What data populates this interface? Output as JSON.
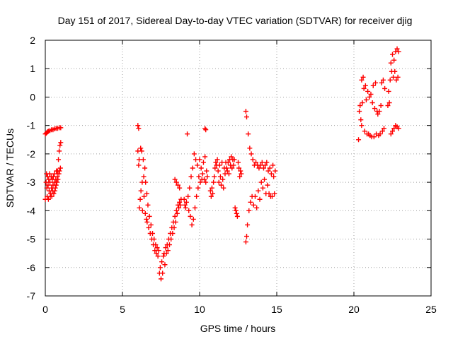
{
  "chart_data": {
    "type": "scatter",
    "title": "Day 151 of 2017, Sidereal Day-to-day VTEC variation (SDTVAR) for receiver djig",
    "xlabel": "GPS time / hours",
    "ylabel": "SDTVAR / TECUs",
    "xlim": [
      0,
      25
    ],
    "ylim": [
      -7,
      2
    ],
    "xticks": [
      0,
      5,
      10,
      15,
      20,
      25
    ],
    "yticks": [
      -7,
      -6,
      -5,
      -4,
      -3,
      -2,
      -1,
      0,
      1,
      2
    ],
    "grid": true,
    "marker": "plus",
    "series": [
      {
        "name": "SDTVAR",
        "color": "#ff0000",
        "points": [
          [
            0.0,
            -1.3
          ],
          [
            0.05,
            -1.28
          ],
          [
            0.1,
            -1.25
          ],
          [
            0.15,
            -1.22
          ],
          [
            0.2,
            -1.2
          ],
          [
            0.3,
            -1.18
          ],
          [
            0.4,
            -1.15
          ],
          [
            0.5,
            -1.15
          ],
          [
            0.6,
            -1.12
          ],
          [
            0.7,
            -1.1
          ],
          [
            0.8,
            -1.1
          ],
          [
            0.9,
            -1.08
          ],
          [
            1.0,
            -1.08
          ],
          [
            0.0,
            -3.6
          ],
          [
            0.05,
            -3.0
          ],
          [
            0.08,
            -2.7
          ],
          [
            0.1,
            -3.2
          ],
          [
            0.12,
            -3.5
          ],
          [
            0.15,
            -2.8
          ],
          [
            0.18,
            -3.1
          ],
          [
            0.2,
            -3.6
          ],
          [
            0.22,
            -2.9
          ],
          [
            0.25,
            -3.3
          ],
          [
            0.28,
            -2.7
          ],
          [
            0.3,
            -3.0
          ],
          [
            0.32,
            -3.5
          ],
          [
            0.35,
            -3.4
          ],
          [
            0.38,
            -2.8
          ],
          [
            0.4,
            -3.2
          ],
          [
            0.42,
            -3.5
          ],
          [
            0.45,
            -2.9
          ],
          [
            0.48,
            -3.3
          ],
          [
            0.5,
            -3.1
          ],
          [
            0.52,
            -2.8
          ],
          [
            0.55,
            -3.4
          ],
          [
            0.58,
            -3.0
          ],
          [
            0.6,
            -2.7
          ],
          [
            0.62,
            -3.3
          ],
          [
            0.65,
            -3.2
          ],
          [
            0.68,
            -2.9
          ],
          [
            0.7,
            -3.1
          ],
          [
            0.72,
            -2.6
          ],
          [
            0.75,
            -3.0
          ],
          [
            0.78,
            -2.8
          ],
          [
            0.8,
            -2.6
          ],
          [
            0.82,
            -2.9
          ],
          [
            0.85,
            -2.2
          ],
          [
            0.88,
            -2.7
          ],
          [
            0.9,
            -1.9
          ],
          [
            0.92,
            -2.6
          ],
          [
            0.95,
            -1.7
          ],
          [
            0.98,
            -2.5
          ],
          [
            1.0,
            -1.6
          ],
          [
            6.0,
            -1.0
          ],
          [
            6.05,
            -1.1
          ],
          [
            6.0,
            -1.9
          ],
          [
            6.05,
            -2.4
          ],
          [
            6.08,
            -2.2
          ],
          [
            6.1,
            -3.9
          ],
          [
            6.15,
            -3.6
          ],
          [
            6.18,
            -1.8
          ],
          [
            6.2,
            -3.3
          ],
          [
            6.25,
            -1.9
          ],
          [
            6.28,
            -3.0
          ],
          [
            6.3,
            -4.0
          ],
          [
            6.35,
            -2.2
          ],
          [
            6.38,
            -2.8
          ],
          [
            6.4,
            -3.5
          ],
          [
            6.45,
            -2.5
          ],
          [
            6.48,
            -4.1
          ],
          [
            6.5,
            -3.0
          ],
          [
            6.55,
            -4.3
          ],
          [
            6.58,
            -3.4
          ],
          [
            6.6,
            -4.4
          ],
          [
            6.65,
            -3.8
          ],
          [
            6.7,
            -4.6
          ],
          [
            6.75,
            -4.2
          ],
          [
            6.8,
            -4.8
          ],
          [
            6.85,
            -4.5
          ],
          [
            6.9,
            -5.0
          ],
          [
            6.95,
            -4.8
          ],
          [
            7.0,
            -5.2
          ],
          [
            7.05,
            -5.0
          ],
          [
            7.1,
            -5.4
          ],
          [
            7.15,
            -5.2
          ],
          [
            7.2,
            -5.5
          ],
          [
            7.25,
            -5.3
          ],
          [
            7.3,
            -5.6
          ],
          [
            7.35,
            -5.4
          ],
          [
            7.4,
            -6.2
          ],
          [
            7.45,
            -6.0
          ],
          [
            7.5,
            -6.4
          ],
          [
            7.55,
            -5.8
          ],
          [
            7.6,
            -6.2
          ],
          [
            7.65,
            -5.6
          ],
          [
            7.7,
            -5.5
          ],
          [
            7.75,
            -5.9
          ],
          [
            7.8,
            -5.3
          ],
          [
            7.85,
            -5.5
          ],
          [
            7.9,
            -5.2
          ],
          [
            7.95,
            -5.4
          ],
          [
            8.0,
            -5.0
          ],
          [
            8.05,
            -5.2
          ],
          [
            8.1,
            -4.8
          ],
          [
            8.15,
            -5.0
          ],
          [
            8.2,
            -4.6
          ],
          [
            8.25,
            -4.8
          ],
          [
            8.3,
            -4.4
          ],
          [
            8.35,
            -4.6
          ],
          [
            8.4,
            -4.2
          ],
          [
            8.45,
            -4.4
          ],
          [
            8.5,
            -4.0
          ],
          [
            8.55,
            -4.1
          ],
          [
            8.6,
            -3.8
          ],
          [
            8.65,
            -3.9
          ],
          [
            8.7,
            -3.7
          ],
          [
            8.75,
            -3.8
          ],
          [
            8.8,
            -3.6
          ],
          [
            8.4,
            -2.9
          ],
          [
            8.5,
            -3.0
          ],
          [
            8.6,
            -3.1
          ],
          [
            8.7,
            -3.2
          ],
          [
            9.0,
            -3.6
          ],
          [
            9.05,
            -3.8
          ],
          [
            9.1,
            -3.9
          ],
          [
            9.15,
            -3.7
          ],
          [
            9.2,
            -1.3
          ],
          [
            9.25,
            -3.5
          ],
          [
            9.3,
            -4.0
          ],
          [
            9.35,
            -3.2
          ],
          [
            9.4,
            -4.2
          ],
          [
            9.45,
            -2.8
          ],
          [
            9.5,
            -4.5
          ],
          [
            9.55,
            -2.5
          ],
          [
            9.6,
            -4.3
          ],
          [
            9.65,
            -2.0
          ],
          [
            9.7,
            -3.9
          ],
          [
            9.75,
            -2.2
          ],
          [
            9.8,
            -3.5
          ],
          [
            9.85,
            -2.4
          ],
          [
            9.9,
            -3.2
          ],
          [
            9.95,
            -2.8
          ],
          [
            10.0,
            -2.2
          ],
          [
            10.05,
            -3.0
          ],
          [
            10.1,
            -2.5
          ],
          [
            10.15,
            -2.9
          ],
          [
            10.2,
            -2.7
          ],
          [
            10.25,
            -2.3
          ],
          [
            10.3,
            -2.9
          ],
          [
            10.35,
            -2.1
          ],
          [
            10.4,
            -3.0
          ],
          [
            10.45,
            -2.6
          ],
          [
            10.5,
            -2.8
          ],
          [
            10.35,
            -1.1
          ],
          [
            10.4,
            -1.15
          ],
          [
            10.7,
            -3.3
          ],
          [
            10.75,
            -3.5
          ],
          [
            10.8,
            -3.2
          ],
          [
            10.85,
            -3.4
          ],
          [
            10.9,
            -3.0
          ],
          [
            10.95,
            -2.8
          ],
          [
            11.0,
            -2.5
          ],
          [
            11.05,
            -2.3
          ],
          [
            11.1,
            -2.4
          ],
          [
            11.15,
            -2.2
          ],
          [
            11.2,
            -2.6
          ],
          [
            11.25,
            -3.0
          ],
          [
            11.3,
            -2.4
          ],
          [
            11.35,
            -2.8
          ],
          [
            11.4,
            -3.1
          ],
          [
            11.45,
            -2.3
          ],
          [
            11.5,
            -2.9
          ],
          [
            11.55,
            -3.2
          ],
          [
            11.6,
            -2.5
          ],
          [
            11.65,
            -2.7
          ],
          [
            11.7,
            -2.3
          ],
          [
            11.75,
            -2.5
          ],
          [
            11.8,
            -2.6
          ],
          [
            11.85,
            -2.3
          ],
          [
            11.9,
            -2.7
          ],
          [
            11.95,
            -2.2
          ],
          [
            12.0,
            -2.4
          ],
          [
            12.05,
            -2.1
          ],
          [
            12.1,
            -2.5
          ],
          [
            12.15,
            -2.2
          ],
          [
            12.2,
            -2.4
          ],
          [
            12.25,
            -2.2
          ],
          [
            12.3,
            -3.9
          ],
          [
            12.35,
            -4.0
          ],
          [
            12.4,
            -4.1
          ],
          [
            12.45,
            -4.2
          ],
          [
            12.5,
            -2.3
          ],
          [
            12.55,
            -2.5
          ],
          [
            12.6,
            -2.8
          ],
          [
            12.65,
            -2.6
          ],
          [
            12.7,
            -2.7
          ],
          [
            13.0,
            -0.5
          ],
          [
            13.05,
            -0.7
          ],
          [
            13.0,
            -5.1
          ],
          [
            13.05,
            -4.9
          ],
          [
            13.1,
            -4.5
          ],
          [
            13.15,
            -1.3
          ],
          [
            13.2,
            -4.0
          ],
          [
            13.25,
            -1.8
          ],
          [
            13.3,
            -3.7
          ],
          [
            13.35,
            -2.0
          ],
          [
            13.4,
            -3.5
          ],
          [
            13.45,
            -2.2
          ],
          [
            13.5,
            -3.8
          ],
          [
            13.55,
            -2.4
          ],
          [
            13.6,
            -3.5
          ],
          [
            13.65,
            -2.3
          ],
          [
            13.7,
            -3.9
          ],
          [
            13.75,
            -2.4
          ],
          [
            13.8,
            -3.3
          ],
          [
            13.85,
            -2.5
          ],
          [
            13.9,
            -3.6
          ],
          [
            13.95,
            -2.4
          ],
          [
            14.0,
            -3.0
          ],
          [
            14.05,
            -2.3
          ],
          [
            14.1,
            -3.2
          ],
          [
            14.15,
            -2.5
          ],
          [
            14.2,
            -2.9
          ],
          [
            14.25,
            -2.4
          ],
          [
            14.3,
            -3.4
          ],
          [
            14.35,
            -2.3
          ],
          [
            14.4,
            -3.1
          ],
          [
            14.45,
            -2.6
          ],
          [
            14.5,
            -3.4
          ],
          [
            14.55,
            -2.5
          ],
          [
            14.6,
            -3.5
          ],
          [
            14.65,
            -2.7
          ],
          [
            14.7,
            -3.5
          ],
          [
            14.75,
            -2.4
          ],
          [
            14.8,
            -2.8
          ],
          [
            14.85,
            -3.4
          ],
          [
            14.9,
            -2.6
          ],
          [
            20.3,
            -1.5
          ],
          [
            20.35,
            -0.5
          ],
          [
            20.4,
            -0.3
          ],
          [
            20.45,
            -0.8
          ],
          [
            20.5,
            -1.0
          ],
          [
            20.5,
            0.6
          ],
          [
            20.55,
            -0.2
          ],
          [
            20.6,
            0.7
          ],
          [
            20.65,
            0.3
          ],
          [
            20.7,
            -1.2
          ],
          [
            20.75,
            0.4
          ],
          [
            20.8,
            -0.1
          ],
          [
            20.85,
            -1.3
          ],
          [
            20.9,
            0.2
          ],
          [
            20.95,
            -1.3
          ],
          [
            21.0,
            0.0
          ],
          [
            21.05,
            -1.35
          ],
          [
            21.1,
            0.1
          ],
          [
            21.15,
            -1.4
          ],
          [
            21.2,
            -0.2
          ],
          [
            21.25,
            0.4
          ],
          [
            21.3,
            -1.4
          ],
          [
            21.35,
            -0.4
          ],
          [
            21.4,
            0.5
          ],
          [
            21.45,
            -1.3
          ],
          [
            21.5,
            -0.5
          ],
          [
            21.55,
            -0.6
          ],
          [
            21.6,
            -1.35
          ],
          [
            21.65,
            -0.5
          ],
          [
            21.7,
            -1.3
          ],
          [
            21.75,
            -0.3
          ],
          [
            21.8,
            0.5
          ],
          [
            21.85,
            -1.2
          ],
          [
            21.9,
            0.6
          ],
          [
            21.95,
            -1.1
          ],
          [
            22.0,
            0.3
          ],
          [
            22.2,
            -0.3
          ],
          [
            22.25,
            0.2
          ],
          [
            22.3,
            -0.2
          ],
          [
            22.35,
            0.6
          ],
          [
            22.4,
            1.2
          ],
          [
            22.45,
            0.9
          ],
          [
            22.5,
            1.5
          ],
          [
            22.55,
            0.7
          ],
          [
            22.6,
            1.3
          ],
          [
            22.65,
            0.9
          ],
          [
            22.7,
            1.6
          ],
          [
            22.75,
            0.6
          ],
          [
            22.8,
            1.7
          ],
          [
            22.85,
            0.7
          ],
          [
            22.9,
            1.6
          ],
          [
            22.4,
            -1.3
          ],
          [
            22.5,
            -1.2
          ],
          [
            22.6,
            -1.1
          ],
          [
            22.7,
            -1.0
          ],
          [
            22.8,
            -1.05
          ],
          [
            22.9,
            -1.1
          ]
        ]
      }
    ]
  }
}
